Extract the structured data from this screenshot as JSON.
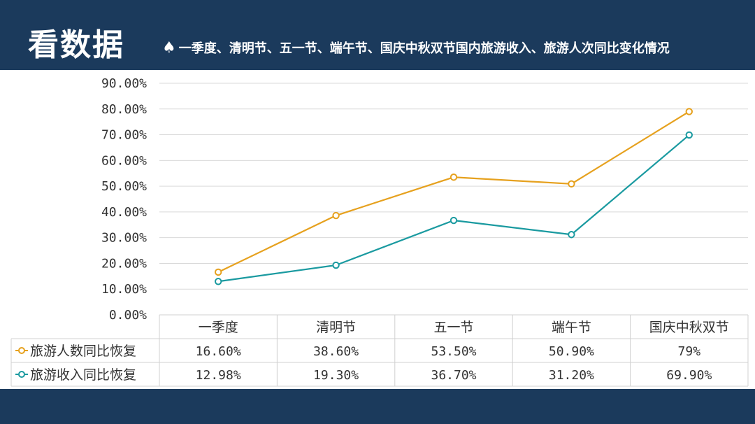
{
  "header": {
    "title": "看数据",
    "subtitle": "一季度、清明节、五一节、端午节、国庆中秋双节国内旅游收入、旅游人次同比变化情况",
    "icon": "spade-icon"
  },
  "colors": {
    "header_bg": "#1b3a5c",
    "series_people": "#e6a11e",
    "series_revenue": "#1a9aa0"
  },
  "chart_data": {
    "type": "line",
    "categories": [
      "一季度",
      "清明节",
      "五一节",
      "端午节",
      "国庆中秋双节"
    ],
    "ylim": [
      0,
      90
    ],
    "yticks": [
      "0.00%",
      "10.00%",
      "20.00%",
      "30.00%",
      "40.00%",
      "50.00%",
      "60.00%",
      "70.00%",
      "80.00%",
      "90.00%"
    ],
    "grid": true,
    "legend": "data-table",
    "series": [
      {
        "name": "旅游人数同比恢复",
        "values": [
          16.6,
          38.6,
          53.5,
          50.9,
          79
        ],
        "labels": [
          "16.60%",
          "38.60%",
          "53.50%",
          "50.90%",
          "79%"
        ],
        "color": "#e6a11e"
      },
      {
        "name": "旅游收入同比恢复",
        "values": [
          12.98,
          19.3,
          36.7,
          31.2,
          69.9
        ],
        "labels": [
          "12.98%",
          "19.30%",
          "36.70%",
          "31.20%",
          "69.90%"
        ],
        "color": "#1a9aa0"
      }
    ]
  }
}
